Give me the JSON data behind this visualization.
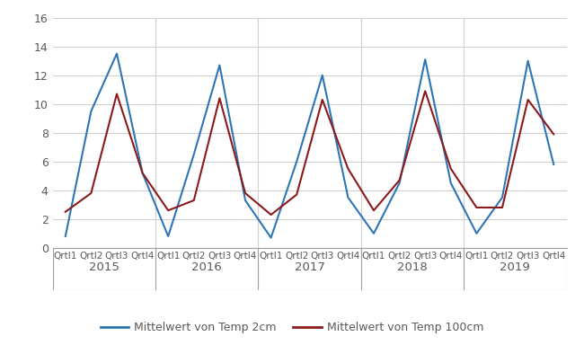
{
  "labels": [
    "Qrtl1",
    "Qrtl2",
    "Qrtl3",
    "Qrtl4",
    "Qrtl1",
    "Qrtl2",
    "Qrtl3",
    "Qrtl4",
    "Qrtl1",
    "Qrtl2",
    "Qrtl3",
    "Qrtl4",
    "Qrtl1",
    "Qrtl2",
    "Qrtl3",
    "Qrtl4",
    "Qrtl1",
    "Qrtl2",
    "Qrtl3",
    "Qrtl4"
  ],
  "years": [
    "2015",
    "2016",
    "2017",
    "2018",
    "2019"
  ],
  "year_positions": [
    1.5,
    5.5,
    9.5,
    13.5,
    17.5
  ],
  "year_dividers": [
    3.5,
    7.5,
    11.5,
    15.5
  ],
  "temp_2cm": [
    0.8,
    9.5,
    13.5,
    5.2,
    0.8,
    6.5,
    12.7,
    3.3,
    0.7,
    6.0,
    12.0,
    3.5,
    1.0,
    4.5,
    13.1,
    4.5,
    1.0,
    3.5,
    13.0,
    5.8
  ],
  "temp_100cm": [
    2.5,
    3.8,
    10.7,
    5.2,
    2.6,
    3.3,
    10.4,
    3.8,
    2.3,
    3.7,
    10.3,
    5.5,
    2.6,
    4.7,
    10.9,
    5.5,
    2.8,
    2.8,
    10.3,
    7.9
  ],
  "color_2cm": "#2E75B6",
  "color_100cm": "#8B1A1A",
  "legend_2cm": "Mittelwert von Temp 2cm",
  "legend_100cm": "Mittelwert von Temp 100cm",
  "ylim": [
    0,
    16
  ],
  "yticks": [
    0,
    2,
    4,
    6,
    8,
    10,
    12,
    14,
    16
  ],
  "grid_color": "#D0D0D0",
  "spine_color": "#A0A0A0",
  "tick_label_color": "#595959",
  "year_label_color": "#595959",
  "legend_label_color": "#595959"
}
